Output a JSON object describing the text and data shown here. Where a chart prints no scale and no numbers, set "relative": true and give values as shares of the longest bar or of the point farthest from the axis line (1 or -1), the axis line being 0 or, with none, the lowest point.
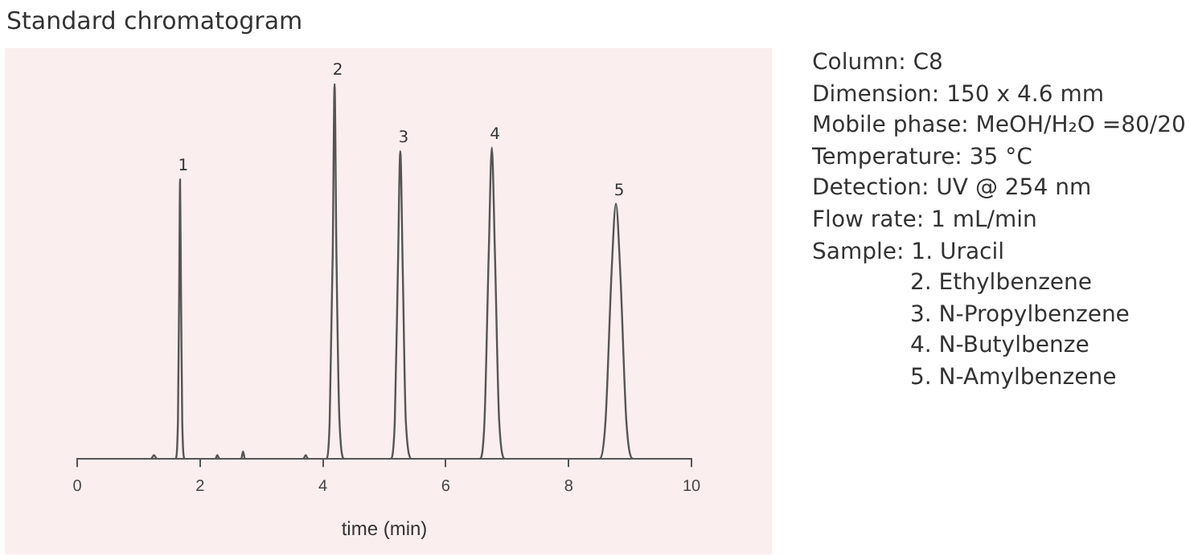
{
  "chart_data": {
    "type": "line",
    "title": "Standard chromatogram",
    "xlabel": "time (min)",
    "relative": true,
    "xlim": [
      0,
      10
    ],
    "xticks": [
      0,
      2,
      4,
      6,
      8,
      10
    ],
    "x": [
      0,
      1.2,
      1.25,
      1.3,
      1.6,
      1.64,
      1.66,
      1.675,
      1.69,
      1.71,
      1.75,
      2.25,
      2.28,
      2.32,
      2.67,
      2.7,
      2.73,
      3.68,
      3.72,
      3.76,
      4.05,
      4.11,
      4.16,
      4.19,
      4.22,
      4.27,
      4.35,
      5.1,
      5.17,
      5.22,
      5.26,
      5.3,
      5.35,
      5.45,
      6.55,
      6.63,
      6.7,
      6.75,
      6.8,
      6.87,
      6.97,
      8.5,
      8.6,
      8.7,
      8.77,
      8.84,
      8.94,
      9.05,
      10
    ],
    "series": [
      {
        "color": "#555555",
        "values": [
          0,
          0,
          0.01,
          0,
          0,
          0.1,
          0.45,
          0.745,
          0.45,
          0.1,
          0,
          0,
          0.01,
          0,
          0,
          0.02,
          0,
          0,
          0.01,
          0,
          0,
          0.1,
          0.55,
          1,
          0.55,
          0.1,
          0,
          0,
          0.1,
          0.5,
          0.82,
          0.5,
          0.1,
          0,
          0,
          0.1,
          0.55,
          0.83,
          0.55,
          0.1,
          0,
          0,
          0.1,
          0.5,
          0.68,
          0.5,
          0.1,
          0,
          0
        ]
      }
    ],
    "annotations": [
      {
        "text": "1",
        "x": 1.675,
        "y": 0.745
      },
      {
        "text": "2",
        "x": 4.19,
        "y": 1
      },
      {
        "text": "3",
        "x": 5.26,
        "y": 0.82
      },
      {
        "text": "4",
        "x": 6.75,
        "y": 0.83
      },
      {
        "text": "5",
        "x": 8.77,
        "y": 0.68
      },
      "Column: C8",
      "Dimension: 150 x 4.6 mm",
      "Mobile phase: MeOH/H₂O =80/20",
      "Temperature: 35 °C",
      "Detection: UV @ 254 nm",
      "Flow rate: 1 mL/min",
      "Sample: 1. Uracil",
      "2. Ethylbenzene",
      "3. N-Propylbenzene",
      "4. N-Butylbenze",
      "5. N-Amylbenzene"
    ]
  }
}
